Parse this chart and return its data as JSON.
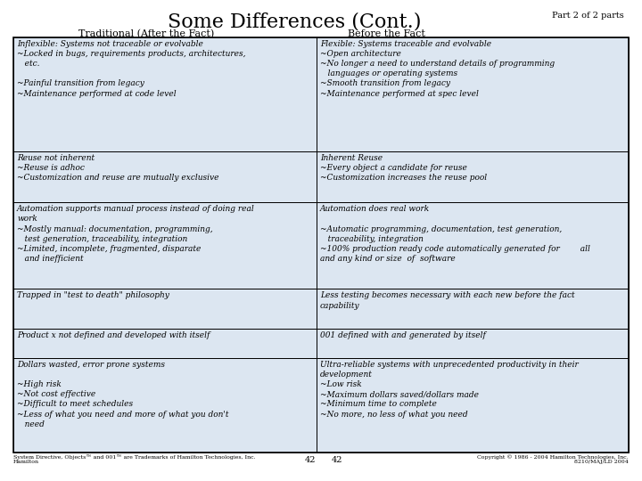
{
  "title": "Some Differences (Cont.)",
  "subtitle": "Part 2 of 2 parts",
  "col1_header": "Traditional (After the Fact)",
  "col2_header": "Before the Fact",
  "bg_color": "#ffffff",
  "cell_bg": "#dce6f1",
  "border_color": "#000000",
  "title_fontsize": 16,
  "subtitle_fontsize": 7,
  "header_fontsize": 8,
  "cell_fontsize": 6.5,
  "rows": [
    {
      "left": "Inflexible: Systems not traceable or evolvable\n~Locked in bugs, requirements products, architectures,\n   etc.\n\n~Painful transition from legacy\n~Maintenance performed at code level",
      "right": "Flexible: Systems traceable and evolvable\n~Open architecture\n~No longer a need to understand details of programming\n   languages or operating systems\n~Smooth transition from legacy\n~Maintenance performed at spec level"
    },
    {
      "left": "Reuse not inherent\n~Reuse is adhoc\n~Customization and reuse are mutually exclusive",
      "right": "Inherent Reuse\n~Every object a candidate for reuse\n~Customization increases the reuse pool"
    },
    {
      "left": "Automation supports manual process instead of doing real\nwork\n~Mostly manual: documentation, programming,\n   test generation, traceability, integration\n~Limited, incomplete, fragmented, disparate\n   and inefficient",
      "right": "Automation does real work\n\n~Automatic programming, documentation, test generation,\n   traceability, integration\n~100% production ready code automatically generated for        all\nand any kind or size  of  software"
    },
    {
      "left": "Trapped in \"test to death\" philosophy",
      "right": "Less testing becomes necessary with each new before the fact\ncapability"
    },
    {
      "left": "Product x not defined and developed with itself",
      "right": "001 defined with and generated by itself"
    },
    {
      "left": "Dollars wasted, error prone systems\n\n~High risk\n~Not cost effective\n~Difficult to meet schedules\n~Less of what you need and more of what you don't\n   need",
      "right": "Ultra-reliable systems with unprecedented productivity in their\ndevelopment\n~Low risk\n~Maximum dollars saved/dollars made\n~Minimum time to complete\n~No more, no less of what you need"
    }
  ],
  "footer_left": "System Directive, Objects™ and 001™ are Trademarks of Hamilton Technologies, Inc.\nHamilton",
  "footer_center": "42",
  "footer_center2": "42",
  "footer_right": "Copyright © 1986 - 2004 Hamilton Technologies, Inc.\n8210/MAJ/LD 2004"
}
